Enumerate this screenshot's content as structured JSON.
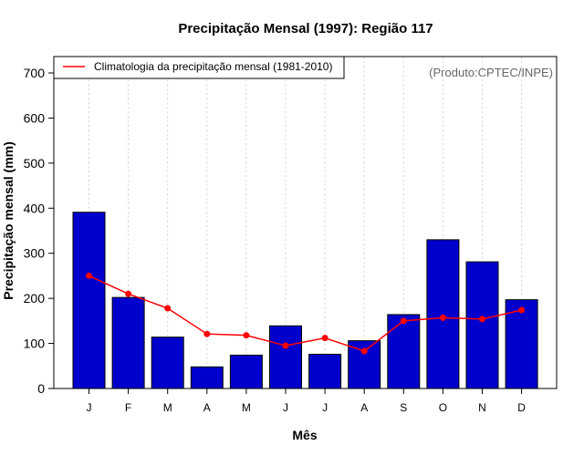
{
  "chart_data": {
    "type": "bar",
    "title": "Precipitação Mensal (1997): Região 117",
    "xlabel": "Mês",
    "ylabel": "Precipitação mensal (mm)",
    "categories": [
      "J",
      "F",
      "M",
      "A",
      "M",
      "J",
      "J",
      "A",
      "S",
      "O",
      "N",
      "D"
    ],
    "ylim": [
      0,
      700
    ],
    "yticks": [
      0,
      100,
      200,
      300,
      400,
      500,
      600,
      700
    ],
    "series": [
      {
        "name": "Precipitação mensal (1997)",
        "type": "bar",
        "color": "#0000CD",
        "values": [
          391,
          202,
          114,
          48,
          74,
          139,
          76,
          106,
          164,
          330,
          281,
          197
        ]
      },
      {
        "name": "Climatologia da precipitação mensal (1981-2010)",
        "type": "line",
        "color": "#FF0000",
        "values": [
          250,
          210,
          178,
          121,
          118,
          95,
          112,
          83,
          150,
          157,
          154,
          174
        ]
      }
    ],
    "legend": {
      "position": "top-left",
      "entries": [
        "Climatologia da precipitação mensal (1981-2010)"
      ]
    },
    "annotation": "(Produto:CPTEC/INPE)",
    "grid": "vertical-dotted"
  }
}
